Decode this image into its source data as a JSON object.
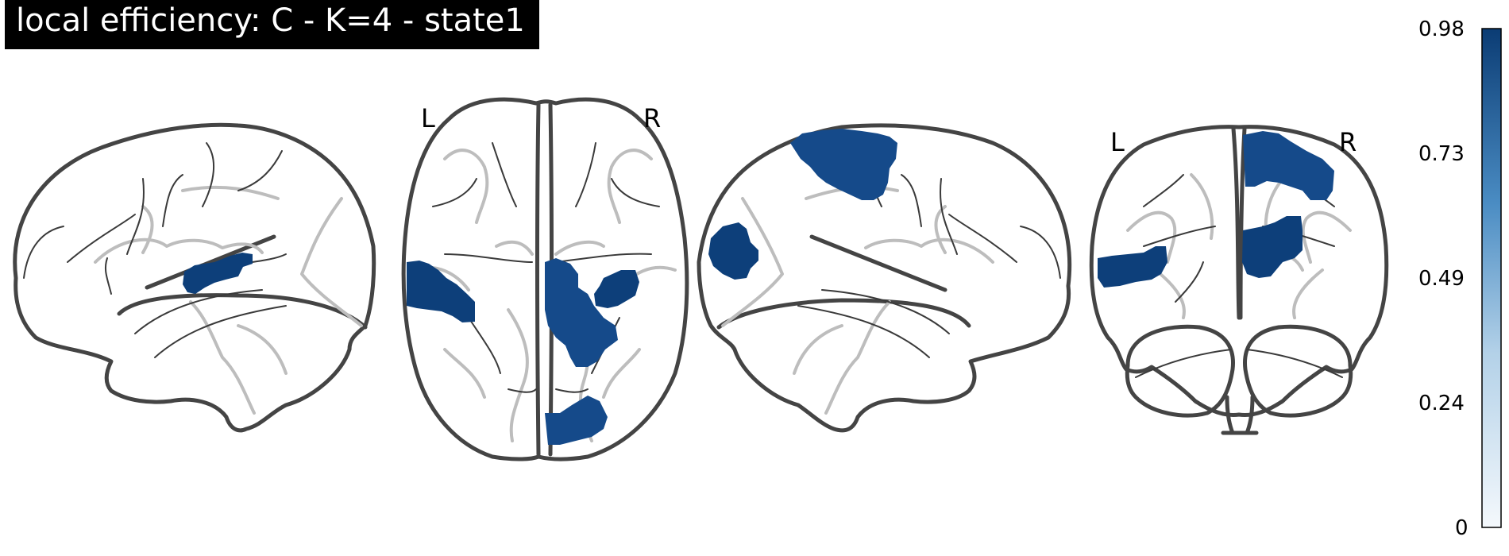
{
  "title": "local efficiency: C - K=4 - state1",
  "views": {
    "axial": {
      "left_label": "L",
      "right_label": "R"
    },
    "coronal": {
      "left_label": "L",
      "right_label": "R"
    }
  },
  "colorbar": {
    "ticks": [
      "0.98",
      "0.73",
      "0.49",
      "0.24",
      "0"
    ],
    "min": 0,
    "max": 0.98,
    "color_low": "#f2f6fb",
    "color_high": "#0b3c74"
  }
}
